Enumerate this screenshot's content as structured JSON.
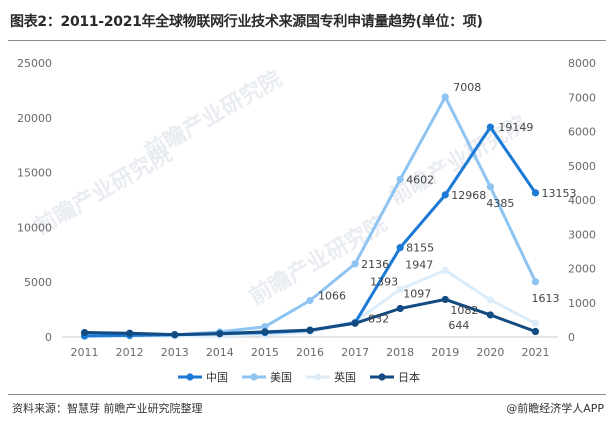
{
  "title": "图表2：2011-2021年全球物联网行业技术来源国专利申请量趋势(单位：项)",
  "source": "资料来源：智慧芽 前瞻产业研究院整理",
  "brand": "@前瞻经济学人APP",
  "watermark": "前瞻产业研究院",
  "chart_data": {
    "type": "line",
    "categories": [
      "2011",
      "2012",
      "2013",
      "2014",
      "2015",
      "2016",
      "2017",
      "2018",
      "2019",
      "2020",
      "2021"
    ],
    "left_axis": {
      "ticks": [
        "0",
        "5000",
        "10000",
        "15000",
        "20000",
        "25000"
      ],
      "ylim": [
        0,
        25000
      ]
    },
    "right_axis": {
      "ticks": [
        "0",
        "1000",
        "2000",
        "3000",
        "4000",
        "5000",
        "6000",
        "7000",
        "8000"
      ],
      "ylim": [
        0,
        8000
      ]
    },
    "grid": false,
    "legend_position": "bottom",
    "series": [
      {
        "name": "中国",
        "axis": "left",
        "color": "#1a7ad6",
        "values": [
          100,
          150,
          200,
          300,
          400,
          600,
          1300,
          8155,
          12968,
          19149,
          13153
        ],
        "labels": [
          null,
          null,
          null,
          null,
          null,
          null,
          null,
          "8155",
          "12968",
          "19149",
          "13153"
        ]
      },
      {
        "name": "美国",
        "axis": "right",
        "color": "#8ec4f2",
        "values": [
          30,
          50,
          60,
          150,
          300,
          1066,
          2136,
          4602,
          7008,
          4385,
          1613
        ],
        "labels": [
          null,
          null,
          null,
          null,
          null,
          "1066",
          "2136",
          "4602",
          "7008",
          "4385",
          "1613"
        ]
      },
      {
        "name": "英国",
        "axis": "right",
        "color": "#dcecf8",
        "values": [
          10,
          20,
          25,
          35,
          60,
          150,
          450,
          1393,
          1947,
          1082,
          400
        ],
        "labels": [
          null,
          null,
          null,
          null,
          null,
          null,
          null,
          "1393",
          "1947",
          "1082",
          null
        ]
      },
      {
        "name": "日本",
        "axis": "right",
        "color": "#124a82",
        "values": [
          130,
          110,
          70,
          100,
          150,
          200,
          400,
          832,
          1097,
          644,
          160
        ],
        "labels": [
          null,
          null,
          null,
          null,
          null,
          null,
          null,
          "832",
          "1097",
          "644",
          null
        ]
      }
    ]
  }
}
